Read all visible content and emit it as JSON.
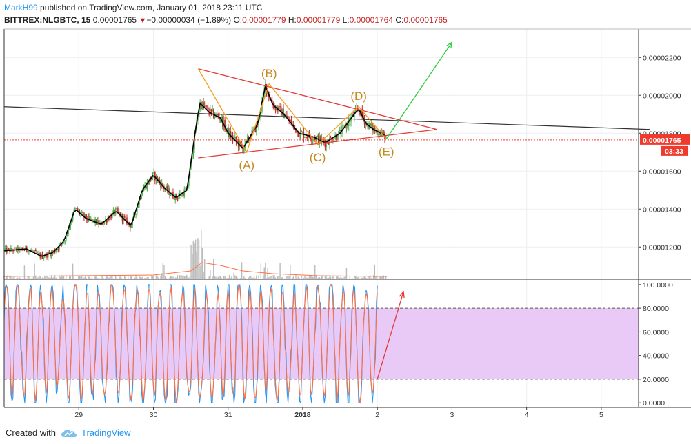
{
  "header": {
    "author": "MarkH99",
    "published": "published on TradingView.com, January 01, 2018 23:11 UTC",
    "symbol": "BITTREX:NLGBTC, 15",
    "last": "0.00001765",
    "change": "−0.00000034 (−1.89%)",
    "open_label": "O:",
    "open": "0.00001779",
    "high_label": "H:",
    "high": "0.00001779",
    "low_label": "L:",
    "low": "0.00001764",
    "close_label": "C:",
    "close": "0.00001765"
  },
  "footer": {
    "created": "Created with",
    "brand": "TradingView",
    "logo_icon": "tradingview-cloud-icon"
  },
  "colors": {
    "price_line": "#000000",
    "candle_up": "#4caf50",
    "candle_down": "#c62828",
    "triangle": "#e53935",
    "wave": "#f59d1a",
    "projection": "#2ecc40",
    "stoch_band": "#e9c9f6",
    "stoch_k": "#2196f3",
    "stoch_d": "#ff7043",
    "volume": "#9e9e9e",
    "price_badge": "#ef3a2e",
    "label_text": "#c58a1f"
  },
  "chart_data": [
    {
      "type": "candlestick",
      "panel": "price",
      "x_unit": "days (Dec 29 = 29, Jan 1 2018 = 32)",
      "xlim": [
        28.0,
        36.5
      ],
      "ylim": [
        1.03e-05,
        2.35e-05
      ],
      "x_ticks": [
        {
          "x": 29,
          "label": "29"
        },
        {
          "x": 30,
          "label": "30"
        },
        {
          "x": 31,
          "label": "31"
        },
        {
          "x": 32,
          "label": "2018"
        },
        {
          "x": 33,
          "label": "2"
        },
        {
          "x": 34,
          "label": "3"
        },
        {
          "x": 35,
          "label": "4"
        },
        {
          "x": 36,
          "label": "5"
        }
      ],
      "y_ticks": [
        {
          "y": 1.2e-05,
          "label": "0.00001200"
        },
        {
          "y": 1.4e-05,
          "label": "0.00001400"
        },
        {
          "y": 1.6e-05,
          "label": "0.00001600"
        },
        {
          "y": 1.8e-05,
          "label": "0.00001800"
        },
        {
          "y": 2e-05,
          "label": "0.00002000"
        },
        {
          "y": 2.2e-05,
          "label": "0.00002200"
        }
      ],
      "close_path": [
        [
          28.0,
          1.18e-05
        ],
        [
          28.3,
          1.19e-05
        ],
        [
          28.5,
          1.15e-05
        ],
        [
          28.65,
          1.17e-05
        ],
        [
          28.8,
          1.23e-05
        ],
        [
          28.95,
          1.4e-05
        ],
        [
          29.1,
          1.35e-05
        ],
        [
          29.3,
          1.32e-05
        ],
        [
          29.5,
          1.39e-05
        ],
        [
          29.7,
          1.31e-05
        ],
        [
          29.85,
          1.5e-05
        ],
        [
          30.0,
          1.58e-05
        ],
        [
          30.15,
          1.51e-05
        ],
        [
          30.3,
          1.46e-05
        ],
        [
          30.45,
          1.5e-05
        ],
        [
          30.55,
          1.78e-05
        ],
        [
          30.62,
          1.96e-05
        ],
        [
          30.75,
          1.91e-05
        ],
        [
          30.9,
          1.88e-05
        ],
        [
          31.0,
          1.8e-05
        ],
        [
          31.2,
          1.72e-05
        ],
        [
          31.4,
          1.85e-05
        ],
        [
          31.5,
          2.05e-05
        ],
        [
          31.6,
          1.95e-05
        ],
        [
          31.75,
          1.9e-05
        ],
        [
          31.95,
          1.8e-05
        ],
        [
          32.15,
          1.78e-05
        ],
        [
          32.3,
          1.75e-05
        ],
        [
          32.5,
          1.8e-05
        ],
        [
          32.65,
          1.88e-05
        ],
        [
          32.75,
          1.93e-05
        ],
        [
          32.85,
          1.85e-05
        ],
        [
          32.95,
          1.82e-05
        ],
        [
          33.05,
          1.8e-05
        ],
        [
          33.13,
          1.78e-05
        ]
      ],
      "last_price": 1.765e-05,
      "last_price_label": "0.00001765",
      "countdown_label": "03:33",
      "pattern_labels": [
        {
          "label": "(A)",
          "x": 31.25,
          "y": 1.7e-05
        },
        {
          "label": "(B)",
          "x": 31.55,
          "y": 2.06e-05
        },
        {
          "label": "(C)",
          "x": 32.2,
          "y": 1.74e-05
        },
        {
          "label": "(D)",
          "x": 32.75,
          "y": 1.94e-05
        },
        {
          "label": "(E)",
          "x": 33.12,
          "y": 1.77e-05
        }
      ],
      "triangle_upper": [
        [
          30.6,
          2.14e-05
        ],
        [
          33.8,
          1.82e-05
        ]
      ],
      "triangle_lower": [
        [
          30.6,
          1.67e-05
        ],
        [
          33.8,
          1.82e-05
        ]
      ],
      "trendline": [
        [
          28.0,
          1.94e-05
        ],
        [
          36.65,
          1.82e-05
        ]
      ],
      "wave_path": [
        [
          30.6,
          2.14e-05
        ],
        [
          31.25,
          1.7e-05
        ],
        [
          31.55,
          2.06e-05
        ],
        [
          32.2,
          1.74e-05
        ],
        [
          32.75,
          1.94e-05
        ],
        [
          33.12,
          1.77e-05
        ]
      ],
      "projection": [
        [
          33.12,
          1.77e-05
        ],
        [
          34.0,
          2.28e-05
        ]
      ]
    },
    {
      "type": "line",
      "panel": "stochastic",
      "ylim": [
        -4,
        104
      ],
      "y_ticks": [
        {
          "y": 0,
          "label": "0.0000"
        },
        {
          "y": 20,
          "label": "20.0000"
        },
        {
          "y": 40,
          "label": "40.0000"
        },
        {
          "y": 60,
          "label": "60.0000"
        },
        {
          "y": 80,
          "label": "80.0000"
        },
        {
          "y": 100,
          "label": "100.0000"
        }
      ],
      "band": [
        20,
        80
      ],
      "series": [
        {
          "key": "k",
          "seed": 7
        },
        {
          "key": "d",
          "seed": 7
        }
      ],
      "arrow": [
        [
          33.0,
          20
        ],
        [
          33.35,
          94
        ]
      ]
    }
  ]
}
